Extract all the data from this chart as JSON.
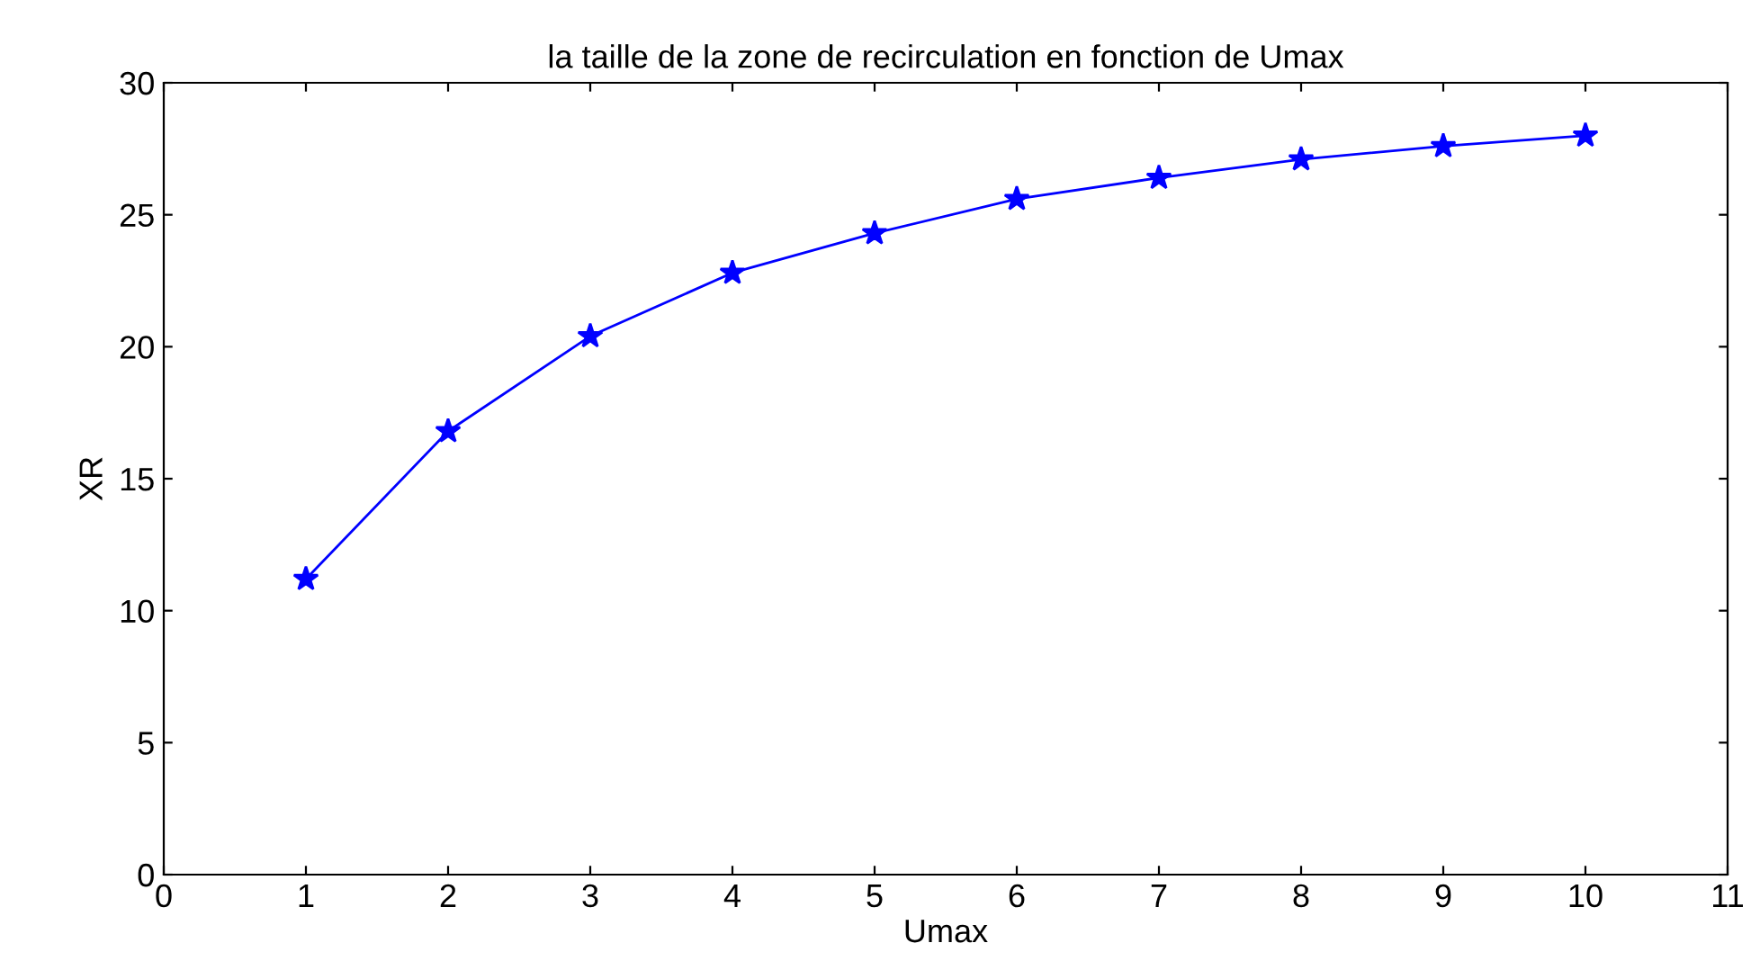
{
  "chart_data": {
    "type": "line",
    "title": "la taille de la zone de recirculation en fonction de Umax",
    "xlabel": "Umax",
    "ylabel": "XR",
    "x": [
      1,
      2,
      3,
      4,
      5,
      6,
      7,
      8,
      9,
      10
    ],
    "series": [
      {
        "color": "#0000ff",
        "values": [
          11.2,
          16.8,
          20.4,
          22.8,
          24.3,
          25.6,
          26.4,
          27.1,
          27.6,
          28.0
        ]
      }
    ],
    "xlim": [
      0,
      11
    ],
    "xticks": [
      0,
      1,
      2,
      3,
      4,
      5,
      6,
      7,
      8,
      9,
      10,
      11
    ],
    "ylim": [
      0,
      30
    ],
    "yticks": [
      0,
      5,
      10,
      15,
      20,
      25,
      30
    ],
    "grid": false,
    "legend": false,
    "marker": "star",
    "line_style": "solid"
  }
}
